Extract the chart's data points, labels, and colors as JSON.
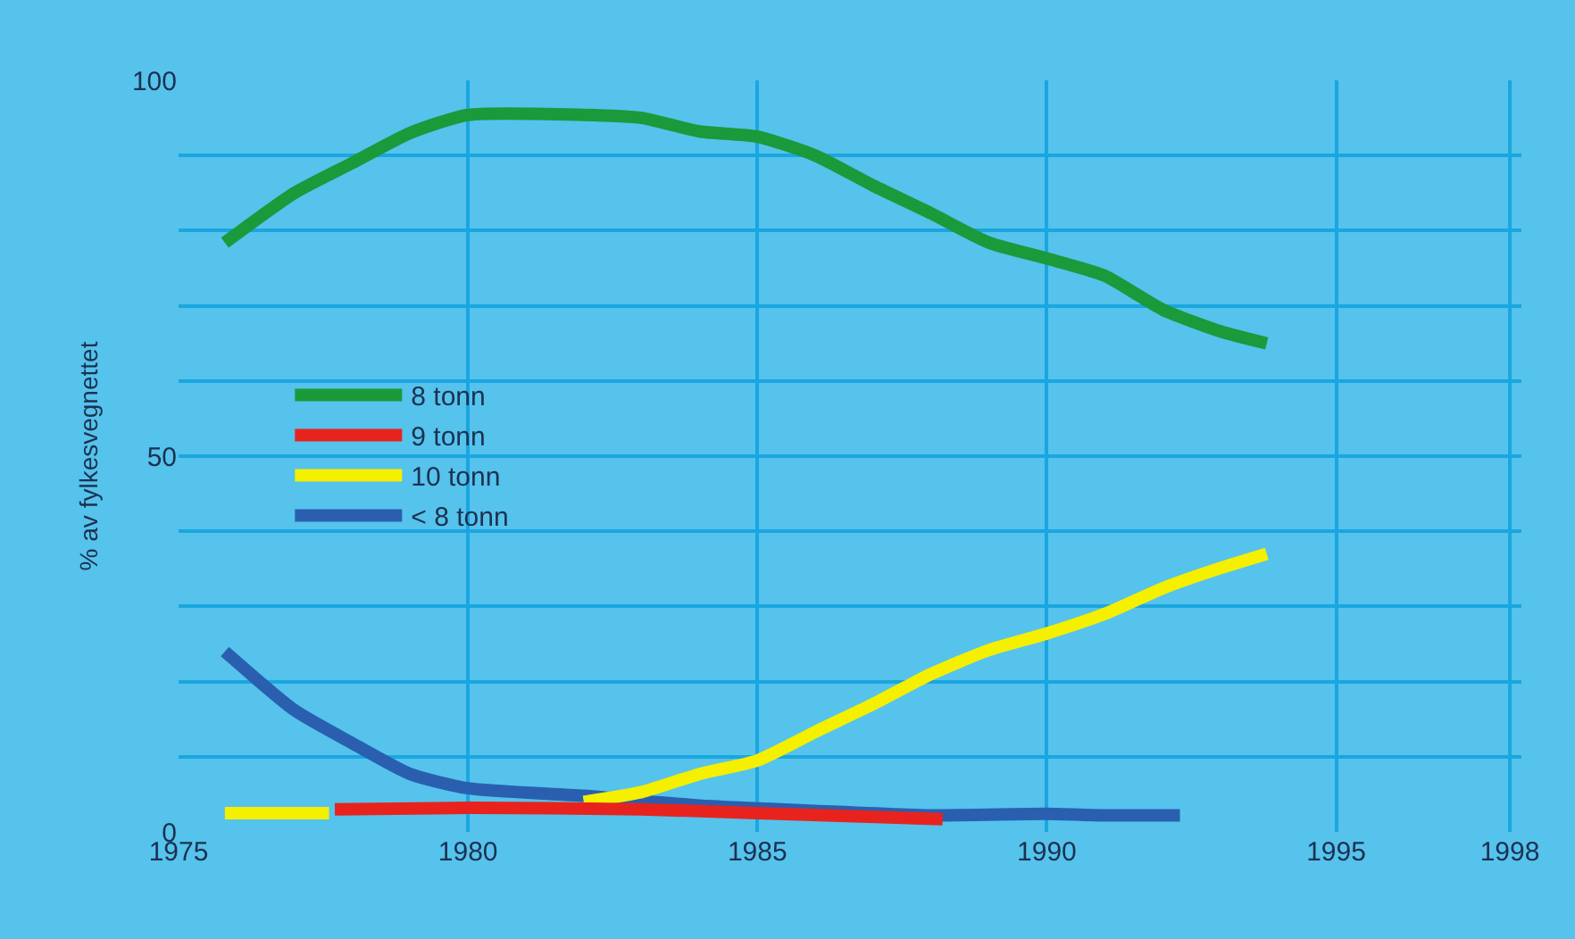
{
  "chart_data": {
    "type": "line",
    "ylabel": "% av fylkesvegnettet",
    "xlim": [
      1975,
      1998.2
    ],
    "xticks": [
      1975,
      1980,
      1985,
      1990,
      1995,
      1998
    ],
    "ylim": [
      0,
      100
    ],
    "yticks": [
      0,
      {
        "value": 10,
        "label": null
      },
      {
        "value": 20,
        "label": null
      },
      {
        "value": 30,
        "label": null
      },
      {
        "value": 40,
        "label": null
      },
      50,
      {
        "value": 60,
        "label": null
      },
      {
        "value": 70,
        "label": null
      },
      {
        "value": 80,
        "label": null
      },
      {
        "value": 90,
        "label": null
      },
      100
    ],
    "grid": true,
    "legend": "left",
    "marker": "none",
    "line_style": "solid",
    "series": [
      {
        "name": "< 8 tonn",
        "color": "#2a5fb0",
        "x": [
          1975.8,
          1977,
          1978,
          1979,
          1980,
          1982,
          1984,
          1986,
          1988,
          1990,
          1991,
          1992.3
        ],
        "values": [
          24,
          16.2,
          11.8,
          7.7,
          5.8,
          4.8,
          3.5,
          2.8,
          2.2,
          2.4,
          2.2,
          2.2
        ]
      },
      {
        "name": "10 tonn",
        "color": "#f5ef00",
        "x": [
          1975.8,
          1977.6,
          1979,
          1980,
          1982,
          1983,
          1984,
          1985,
          1986,
          1987,
          1988,
          1989,
          1990,
          1991,
          1992,
          1993,
          1993.8
        ],
        "values": [
          2.5,
          2.5,
          null,
          null,
          4,
          5.3,
          7.7,
          9.5,
          13.3,
          17,
          21,
          24.2,
          26.4,
          29,
          32.4,
          35.1,
          37
        ]
      },
      {
        "name": "9 tonn",
        "color": "#e8231e",
        "x": [
          1977.7,
          1980,
          1983,
          1985,
          1988.2
        ],
        "values": [
          3,
          3.2,
          3,
          2.5,
          1.7
        ]
      },
      {
        "name": "8 tonn",
        "color": "#1a9a3a",
        "x": [
          1975.8,
          1977,
          1978,
          1979,
          1980,
          1982,
          1983,
          1984,
          1985,
          1986,
          1987,
          1988,
          1989,
          1990,
          1991,
          1992,
          1993,
          1993.8
        ],
        "values": [
          78.4,
          85,
          89,
          93,
          95.4,
          95.4,
          95,
          93.2,
          92.5,
          90,
          86,
          82.3,
          78.4,
          76.3,
          74,
          69.5,
          66.6,
          65
        ]
      }
    ]
  }
}
